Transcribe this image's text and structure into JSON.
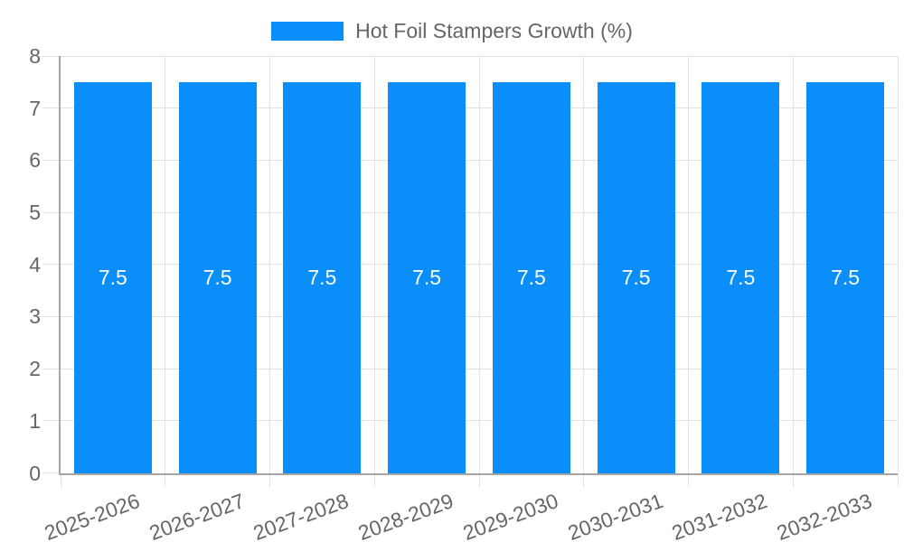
{
  "chart_data": {
    "type": "bar",
    "title": "Hot Foil Stampers Growth (%)",
    "categories": [
      "2025-2026",
      "2026-2027",
      "2027-2028",
      "2028-2029",
      "2029-2030",
      "2030-2031",
      "2031-2032",
      "2032-2033"
    ],
    "values": [
      7.5,
      7.5,
      7.5,
      7.5,
      7.5,
      7.5,
      7.5,
      7.5
    ],
    "bar_labels": [
      "7.5",
      "7.5",
      "7.5",
      "7.5",
      "7.5",
      "7.5",
      "7.5",
      "7.5"
    ],
    "ytick_labels": [
      "0",
      "1",
      "2",
      "3",
      "4",
      "5",
      "6",
      "7",
      "8"
    ],
    "ylim": [
      0,
      8
    ],
    "ytick_step": 1,
    "grid": true,
    "legend_position": "top",
    "xlabel": "",
    "ylabel": "",
    "colors": {
      "bar": "#0a8ef9",
      "bar_label": "#ffffff",
      "axis_text": "#666666",
      "grid_line": "#e1e1e1",
      "axis_line": "#a5a5a5",
      "background": "#ffffff"
    }
  }
}
